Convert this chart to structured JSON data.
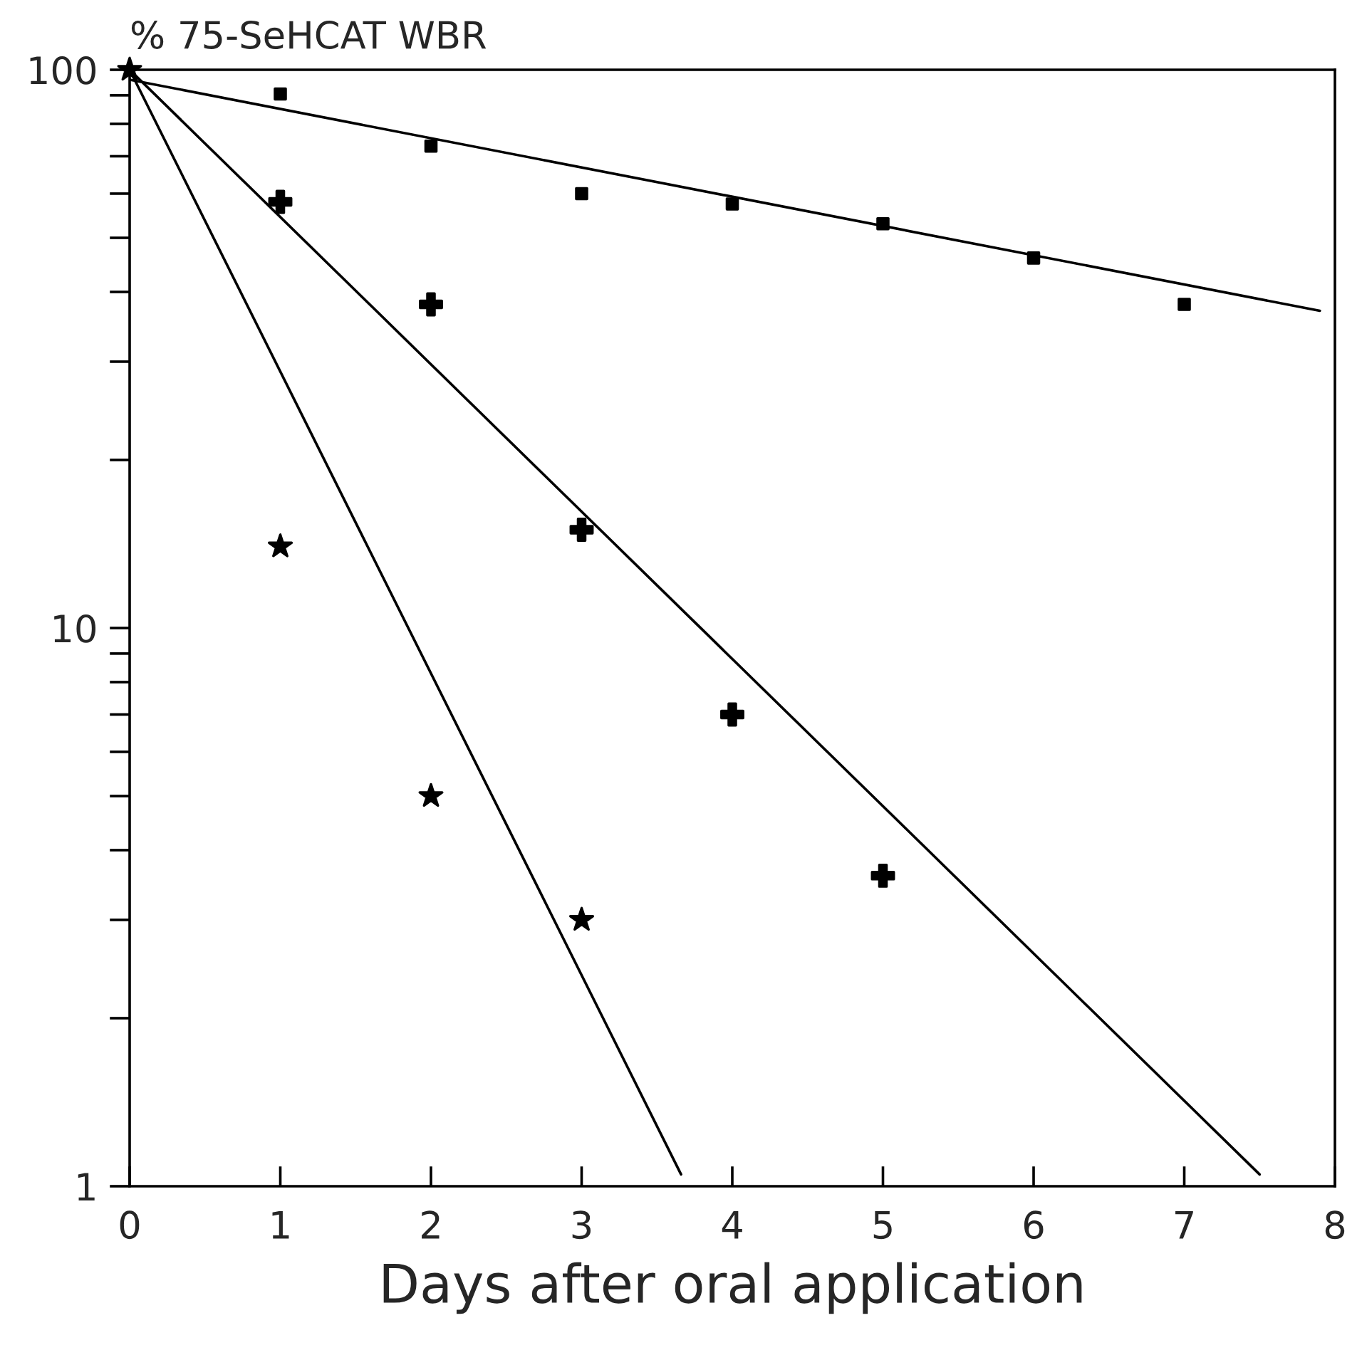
{
  "chart_data": {
    "type": "scatter",
    "ylabel": "% 75-SeHCAT WBR",
    "xlabel": "Days after oral application",
    "log": "y",
    "xlim": [
      0,
      8
    ],
    "ylim": [
      1,
      100
    ],
    "xticks": [
      0,
      1,
      2,
      3,
      4,
      5,
      6,
      7,
      8
    ],
    "yticks": [
      1,
      {
        "value": 2,
        "label": null
      },
      {
        "value": 3,
        "label": null
      },
      {
        "value": 4,
        "label": null
      },
      {
        "value": 5,
        "label": null
      },
      {
        "value": 6,
        "label": null
      },
      {
        "value": 7,
        "label": null
      },
      {
        "value": 8,
        "label": null
      },
      {
        "value": 9,
        "label": null
      },
      10,
      {
        "value": 20,
        "label": null
      },
      {
        "value": 30,
        "label": null
      },
      {
        "value": 40,
        "label": null
      },
      {
        "value": 50,
        "label": null
      },
      {
        "value": 60,
        "label": null
      },
      {
        "value": 70,
        "label": null
      },
      {
        "value": 80,
        "label": null
      },
      {
        "value": 90,
        "label": null
      },
      100
    ],
    "grid": false,
    "legend": false,
    "series": [
      {
        "type": "scatter",
        "marker": "square",
        "color": "#000000",
        "x": [
          1,
          2,
          3,
          4,
          5,
          6,
          7
        ],
        "values": [
          90.5,
          73,
          60,
          57.5,
          53,
          46,
          38
        ]
      },
      {
        "type": "scatter",
        "marker": "cross",
        "color": "#000000",
        "x": [
          1,
          2,
          3,
          4,
          5
        ],
        "values": [
          58,
          38,
          15,
          7.0,
          3.6
        ]
      },
      {
        "type": "scatter",
        "marker": "star",
        "color": "#000000",
        "x": [
          0,
          1,
          2,
          3
        ],
        "values": [
          100,
          14,
          5.0,
          3.0
        ]
      },
      {
        "type": "line",
        "marker": "none",
        "line_style": "solid",
        "color": "#000000",
        "x": [
          0,
          7.9
        ],
        "values": [
          96,
          37
        ]
      },
      {
        "type": "line",
        "marker": "none",
        "line_style": "solid",
        "color": "#000000",
        "x": [
          0,
          7.5
        ],
        "values": [
          100,
          1.05
        ]
      },
      {
        "type": "line",
        "marker": "none",
        "line_style": "solid",
        "color": "#000000",
        "x": [
          0,
          3.66
        ],
        "values": [
          100,
          1.05
        ]
      }
    ]
  }
}
